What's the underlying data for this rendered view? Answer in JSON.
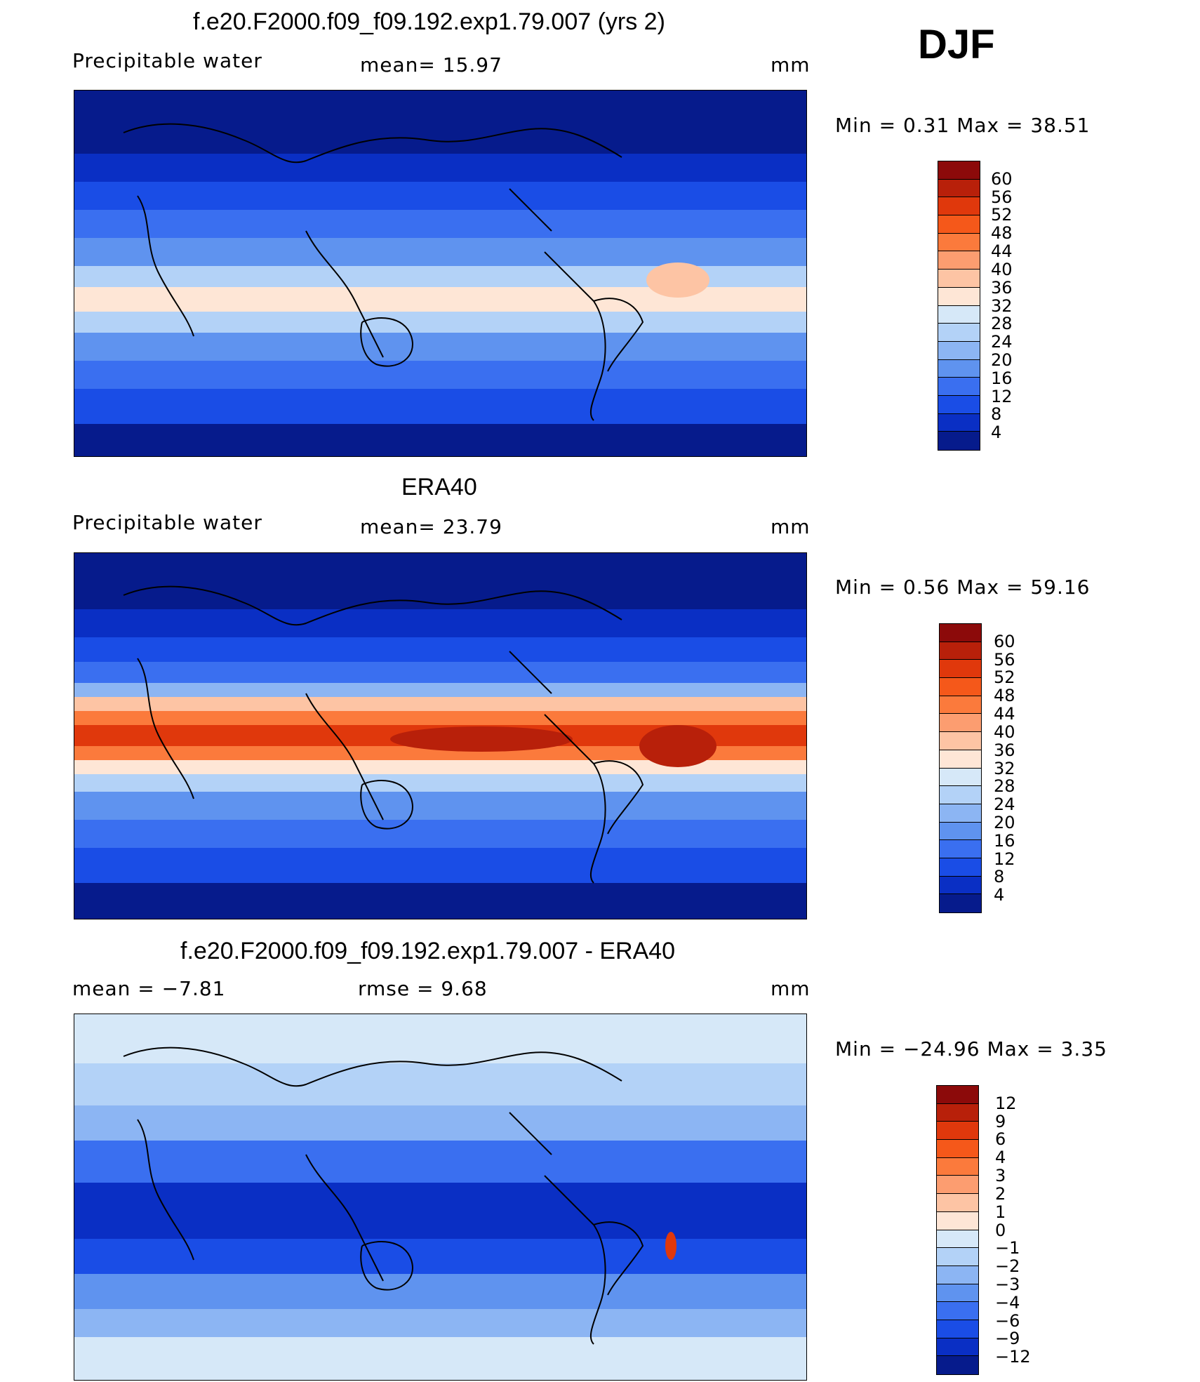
{
  "season": "DJF",
  "panels": [
    {
      "title": "f.e20.F2000.f09_f09.192.exp1.79.007 (yrs 2)",
      "left_label": "Precipitable  water",
      "center_label": "mean=   15.97",
      "units": "mm",
      "minmax": "Min  =     0.31  Max  =    38.51",
      "colorbar_labels": [
        "60",
        "56",
        "52",
        "48",
        "44",
        "40",
        "36",
        "32",
        "28",
        "24",
        "20",
        "16",
        "12",
        "8",
        "4"
      ],
      "colors": [
        "#8c0a0a",
        "#b8200a",
        "#e0380c",
        "#f5581a",
        "#fb7a3c",
        "#fc9d70",
        "#fdc4a4",
        "#fee6d6",
        "#d6e8f8",
        "#b3d2f7",
        "#8cb5f3",
        "#5f93ef",
        "#3a6ff0",
        "#1a4de6",
        "#0a2fc4",
        "#061b8c"
      ],
      "map_style": "model"
    },
    {
      "title": "ERA40",
      "left_label": "Precipitable  water",
      "center_label": "mean=   23.79",
      "units": "mm",
      "minmax": "Min  =     0.56  Max  =    59.16",
      "colorbar_labels": [
        "60",
        "56",
        "52",
        "48",
        "44",
        "40",
        "36",
        "32",
        "28",
        "24",
        "20",
        "16",
        "12",
        "8",
        "4"
      ],
      "colors": [
        "#8c0a0a",
        "#b8200a",
        "#e0380c",
        "#f5581a",
        "#fb7a3c",
        "#fc9d70",
        "#fdc4a4",
        "#fee6d6",
        "#d6e8f8",
        "#b3d2f7",
        "#8cb5f3",
        "#5f93ef",
        "#3a6ff0",
        "#1a4de6",
        "#0a2fc4",
        "#061b8c"
      ],
      "map_style": "obs"
    },
    {
      "title": "f.e20.F2000.f09_f09.192.exp1.79.007 - ERA40",
      "left_label": "mean  =    −7.81",
      "center_label": "rmse  =     9.68",
      "units": "mm",
      "minmax": "Min  = −24.96  Max  =      3.35",
      "colorbar_labels": [
        "12",
        "9",
        "6",
        "4",
        "3",
        "2",
        "1",
        "0",
        "−1",
        "−2",
        "−3",
        "−4",
        "−6",
        "−9",
        "−12"
      ],
      "colors": [
        "#8c0a0a",
        "#b8200a",
        "#e0380c",
        "#f5581a",
        "#fb7a3c",
        "#fc9d70",
        "#fdc4a4",
        "#fee6d6",
        "#d6e8f8",
        "#b3d2f7",
        "#8cb5f3",
        "#5f93ef",
        "#3a6ff0",
        "#1a4de6",
        "#0a2fc4",
        "#061b8c"
      ],
      "map_style": "diff"
    }
  ]
}
